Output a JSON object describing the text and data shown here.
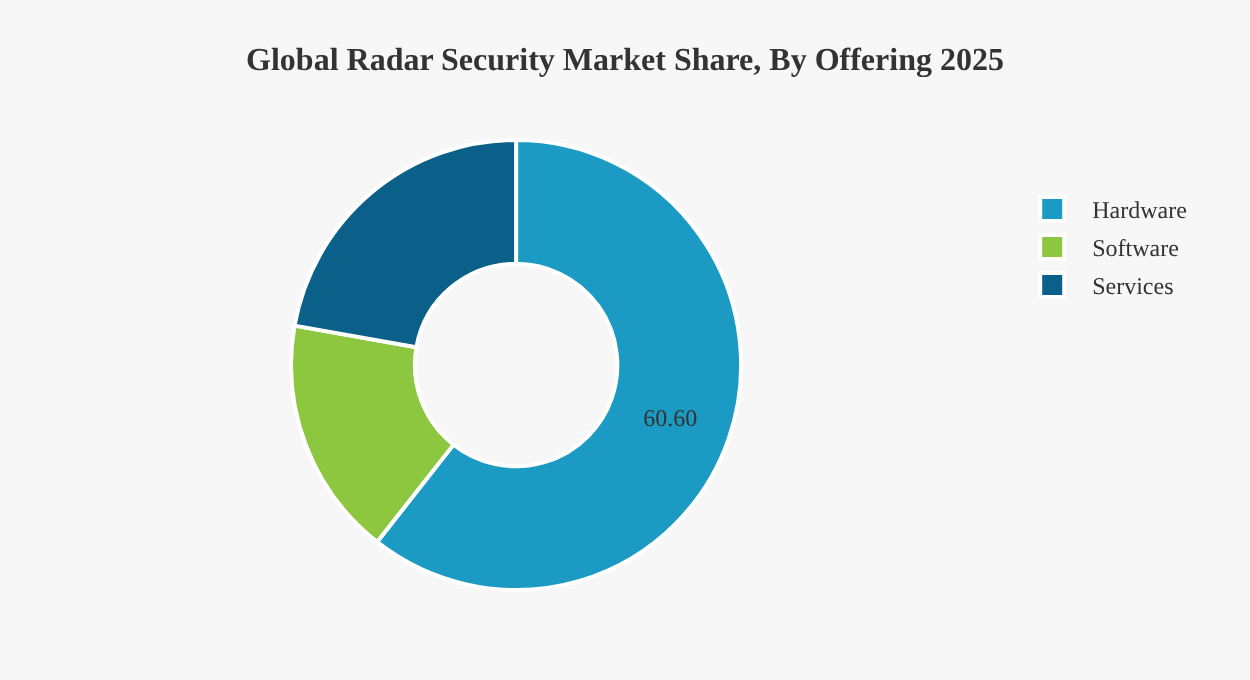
{
  "chart_data": {
    "type": "donut",
    "title": "Global Radar Security Market Share, By Offering 2025",
    "categories": [
      "Hardware",
      "Software",
      "Services"
    ],
    "values": [
      60.6,
      17.2,
      22.2
    ],
    "colors": [
      "#1b9bc4",
      "#8dc63f",
      "#0a6089"
    ],
    "value_labels": [
      "60.60",
      null,
      null
    ],
    "legend": "top right"
  }
}
